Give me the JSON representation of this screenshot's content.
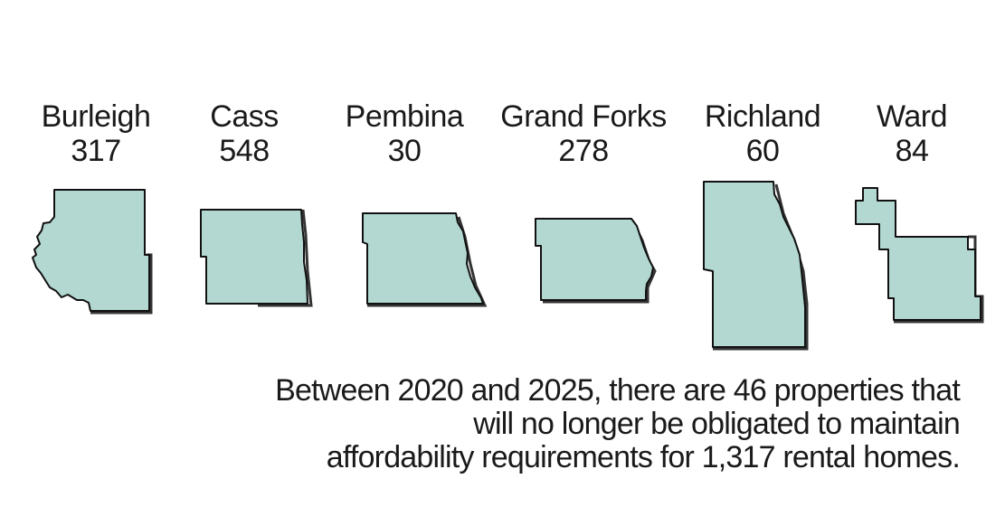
{
  "counties": [
    {
      "name": "Burleigh",
      "count": "317"
    },
    {
      "name": "Cass",
      "count": "548"
    },
    {
      "name": "Pembina",
      "count": "30"
    },
    {
      "name": "Grand Forks",
      "count": "278"
    },
    {
      "name": "Richland",
      "count": "60"
    },
    {
      "name": "Ward",
      "count": "84"
    }
  ],
  "caption": {
    "line1": "Between 2020 and 2025, there are 46 properties that",
    "line2": "will no longer be obligated to maintain",
    "line3": "affordability requirements for 1,317 rental homes."
  },
  "colors": {
    "county_fill": "#b3d8d1",
    "outline": "#111111"
  }
}
